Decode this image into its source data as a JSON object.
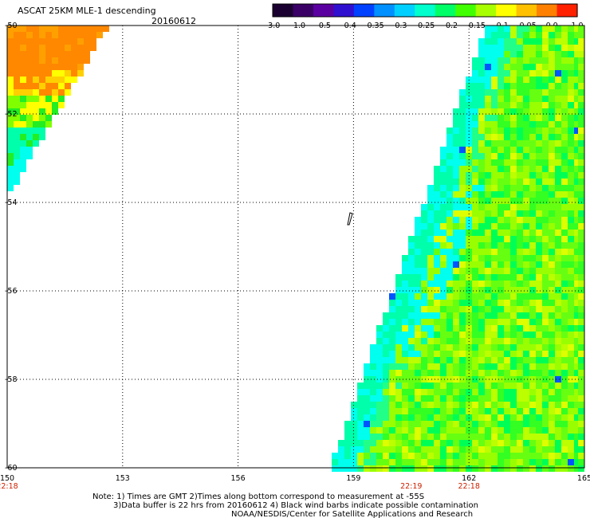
{
  "header": {
    "product": "ASCAT 25KM MLE-1 descending",
    "date": "20160612"
  },
  "colorbar": {
    "labels": [
      "-3.0",
      "-1.0",
      "-0.5",
      "-0.4",
      "-0.35",
      "-0.3",
      "-0.25",
      "-0.2",
      "-0.15",
      "-0.1",
      "-0.05",
      "0.0",
      "1.0"
    ],
    "colors": [
      "#1a0030",
      "#3a0066",
      "#5a00a0",
      "#3010d0",
      "#0040ff",
      "#0090ff",
      "#00d0ff",
      "#00ffcc",
      "#00ff66",
      "#40ff00",
      "#a8ff00",
      "#ffff00",
      "#ffc000",
      "#ff8000",
      "#ff2000"
    ]
  },
  "map": {
    "lat_labels": [
      "-50",
      "-52",
      "-54",
      "-56",
      "-58",
      "-60"
    ],
    "lon_labels": [
      "150",
      "153",
      "156",
      "159",
      "162",
      "165"
    ],
    "times": [
      {
        "label": "22:18",
        "lon": "150"
      },
      {
        "label": "22:19",
        "lon": "160.5"
      },
      {
        "label": "22:18",
        "lon": "162"
      }
    ],
    "value_colors": {
      "orange": "#ff8800",
      "yellow": "#ffff00",
      "lime": "#7fff00",
      "green": "#22ee22",
      "cyan": "#00ffee",
      "blue": "#0055ff",
      "time_label": "#cc2200"
    }
  },
  "notes": {
    "line1": "Note: 1) Times are GMT 2)Times along bottom correspond to measurement at -55S",
    "line2": "3)Data buffer is 22 hrs from 20160612 4) Black wind barbs indicate possible contamination",
    "line3": "NOAA/NESDIS/Center for Satellite Applications and Research"
  }
}
